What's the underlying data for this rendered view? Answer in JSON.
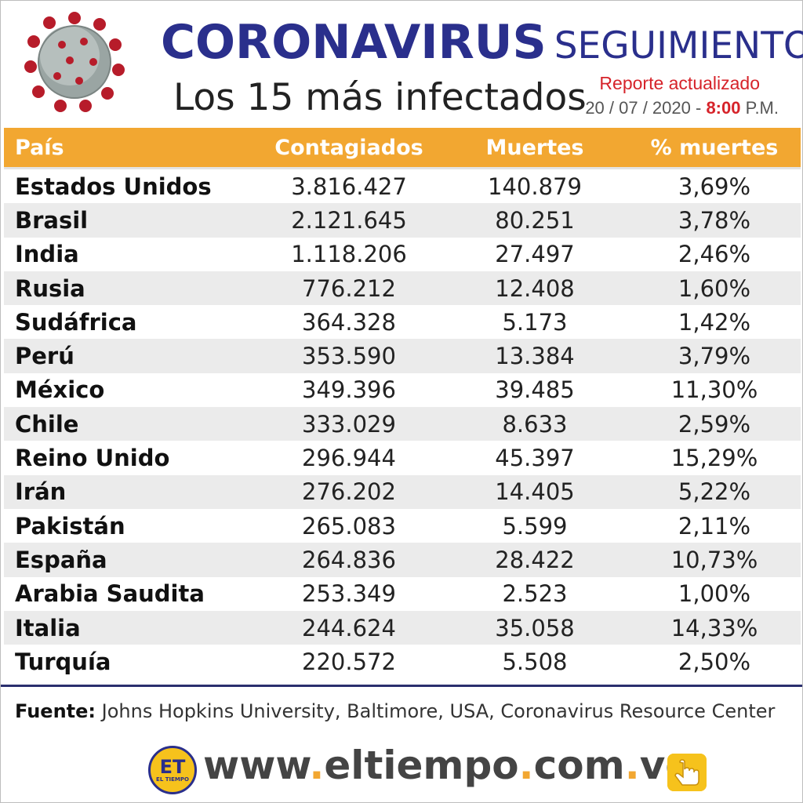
{
  "header": {
    "title_word1": "Coronavirus",
    "title_word2": "seguimiento",
    "subtitle": "Los 15 más infectados",
    "report_label": "Reporte actualizado",
    "report_date": "20 / 07 / 2020 -",
    "report_time": "8:00",
    "report_ampm": "P.M."
  },
  "chart_data": {
    "type": "table",
    "title": "Los 15 más infectados",
    "columns": [
      "País",
      "Contagiados",
      "Muertes",
      "% muertes"
    ],
    "rows": [
      [
        "Estados Unidos",
        "3.816.427",
        "140.879",
        "3,69%"
      ],
      [
        "Brasil",
        "2.121.645",
        "80.251",
        "3,78%"
      ],
      [
        "India",
        "1.118.206",
        "27.497",
        "2,46%"
      ],
      [
        "Rusia",
        "776.212",
        "12.408",
        "1,60%"
      ],
      [
        "Sudáfrica",
        "364.328",
        "5.173",
        "1,42%"
      ],
      [
        "Perú",
        "353.590",
        "13.384",
        "3,79%"
      ],
      [
        "México",
        "349.396",
        "39.485",
        "11,30%"
      ],
      [
        "Chile",
        "333.029",
        "8.633",
        "2,59%"
      ],
      [
        "Reino Unido",
        "296.944",
        "45.397",
        "15,29%"
      ],
      [
        "Irán",
        "276.202",
        "14.405",
        "5,22%"
      ],
      [
        "Pakistán",
        "265.083",
        "5.599",
        "2,11%"
      ],
      [
        "España",
        "264.836",
        "28.422",
        "10,73%"
      ],
      [
        "Arabia Saudita",
        "253.349",
        "2.523",
        "1,00%"
      ],
      [
        "Italia",
        "244.624",
        "35.058",
        "14,33%"
      ],
      [
        "Turquía",
        "220.572",
        "5.508",
        "2,50%"
      ]
    ]
  },
  "footer": {
    "source_label": "Fuente:",
    "source_text": "Johns Hopkins University, Baltimore, USA, Coronavirus Resource Center",
    "logo_text": "ET",
    "logo_subtext": "EL TIEMPO",
    "url_parts": [
      "www",
      ".",
      "eltiempo",
      ".",
      "com",
      ".",
      "ve"
    ]
  },
  "colors": {
    "header_bar": "#f2a731",
    "title_blue": "#2a2f8c",
    "accent_red": "#d6232a",
    "row_alt": "#ebebeb"
  }
}
